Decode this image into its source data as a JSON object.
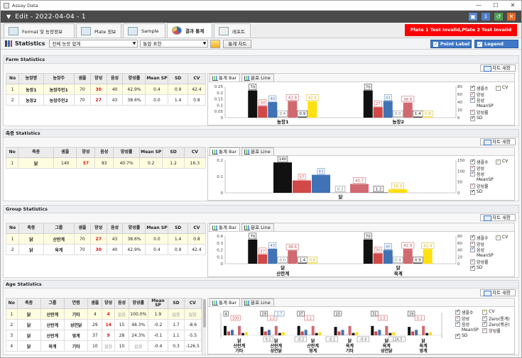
{
  "os": {
    "title": "Assay Data",
    "minimize": "—",
    "maximize": "☐",
    "close": "✕"
  },
  "app": {
    "title": "Edit  -  2022-04-04  -  1",
    "tools": [
      "▣",
      "⇩",
      "↺",
      "✕"
    ]
  },
  "tabs": [
    {
      "label": "Format 및 농장정보",
      "active": false
    },
    {
      "label": "Plate 정보",
      "active": false
    },
    {
      "label": "Sample",
      "active": false
    },
    {
      "label": "결과 통계",
      "active": true
    },
    {
      "label": "레포트",
      "active": false
    }
  ],
  "alert": "Plate 1 Test Invalid,Plate 2 Test Invalid",
  "statistics": {
    "title": "Statistics",
    "farm_select": "전체 농장 합계",
    "mode_select": "통합 표현",
    "chart_button": "통계 차트",
    "point_label": "Point Label",
    "legend": "Legend"
  },
  "common": {
    "refresh_chart": "차트 새창",
    "tab_bar": "통계 Bar",
    "tab_line": "분포 Line",
    "meansp_header": "Mean SP"
  },
  "farm": {
    "title": "Farm Statistics",
    "headers": [
      "No",
      "농장명",
      "농장주",
      "샘플",
      "양성",
      "음성",
      "양성률",
      "Mean SP",
      "SD",
      "CV"
    ],
    "rows": [
      [
        "1",
        "농장1",
        "농장주인1",
        "70",
        "30",
        "40",
        "42.9%",
        "0.4",
        "0.9",
        "42.4"
      ],
      [
        "2",
        "농장2",
        "농장주인2",
        "70",
        "27",
        "43",
        "38.6%",
        "0.0",
        "1.4",
        "0.8"
      ]
    ],
    "legend": [
      "샘플수",
      "양성",
      "음성",
      "MeanSP",
      "양성률",
      "SD",
      "CV"
    ],
    "chart": {
      "categories": [
        "농장1",
        "농장2"
      ],
      "bars": [
        {
          "label": "70",
          "value": 70
        },
        {
          "label": "30",
          "value": 30
        },
        {
          "label": "40",
          "value": 40
        },
        {
          "label": "0.4",
          "value": 0.4
        },
        {
          "label": "42.9",
          "value": 42.9
        },
        {
          "label": "0.9",
          "value": 0.9
        },
        {
          "label": "42.4",
          "value": 42.4
        },
        {
          "label": "70",
          "value": 70
        },
        {
          "label": "27",
          "value": 27
        },
        {
          "label": "43",
          "value": 43
        },
        {
          "label": "0.0",
          "value": 0.0
        },
        {
          "label": "38.6",
          "value": 38.6
        },
        {
          "label": "1.4",
          "value": 1.4
        },
        {
          "label": "0.8",
          "value": 0.8
        }
      ],
      "y_ticks": [
        "0",
        "0.05",
        "0.1",
        "0.15",
        "0.2",
        "0.25"
      ],
      "y2_ticks": [
        "0",
        "20",
        "40",
        "60",
        "80"
      ]
    }
  },
  "breed": {
    "title": "축종 Statistics",
    "headers": [
      "No",
      "축종",
      "샘플",
      "양성",
      "음성",
      "양성률",
      "Mean SP",
      "SD",
      "CV"
    ],
    "rows": [
      [
        "1",
        "닭",
        "140",
        "57",
        "83",
        "40.7%",
        "0.2",
        "1.2",
        "16.3"
      ]
    ],
    "legend": [
      "샘플수",
      "양성",
      "음성",
      "MeanSP",
      "양성률",
      "SD",
      "CV"
    ],
    "chart": {
      "categories": [
        "닭"
      ],
      "bars": [
        {
          "label": "140",
          "value": 140
        },
        {
          "label": "57",
          "value": 57
        },
        {
          "label": "83",
          "value": 83
        },
        {
          "label": "0.2",
          "value": 0.2
        },
        {
          "label": "40.7",
          "value": 40.7
        },
        {
          "label": "1.2",
          "value": 1.2
        },
        {
          "label": "16.3",
          "value": 16.3
        }
      ],
      "y_ticks": [
        "0",
        "0.1",
        "0.2"
      ],
      "y2_ticks": [
        "0",
        "50",
        "100",
        "150"
      ]
    }
  },
  "group": {
    "title": "Group Statistics",
    "headers": [
      "No",
      "축종",
      "그룹",
      "샘플",
      "양성",
      "음성",
      "양성률",
      "Mean SP",
      "SD",
      "CV"
    ],
    "rows": [
      [
        "1",
        "닭",
        "산란계",
        "70",
        "27",
        "43",
        "38.6%",
        "0.0",
        "1.4",
        "0.8"
      ],
      [
        "2",
        "닭",
        "육계",
        "70",
        "30",
        "40",
        "42.9%",
        "0.4",
        "0.9",
        "42.4"
      ]
    ],
    "legend": [
      "샘플수",
      "양성",
      "음성",
      "MeanSP",
      "양성률",
      "SD",
      "CV"
    ],
    "chart": {
      "categories": [
        "닭\n산란계",
        "닭\n육계"
      ],
      "bars": [
        {
          "label": "70",
          "value": 70
        },
        {
          "label": "27",
          "value": 27
        },
        {
          "label": "43",
          "value": 43
        },
        {
          "label": "0.0",
          "value": 0.0
        },
        {
          "label": "38.6",
          "value": 38.6
        },
        {
          "label": "1.4",
          "value": 1.4
        },
        {
          "label": "0.8",
          "value": 0.8
        },
        {
          "label": "70",
          "value": 70
        },
        {
          "label": "30",
          "value": 30
        },
        {
          "label": "40",
          "value": 40
        },
        {
          "label": "0.4",
          "value": 0.4
        },
        {
          "label": "42.9",
          "value": 42.9
        },
        {
          "label": "0.9",
          "value": 0.9
        },
        {
          "label": "42.4",
          "value": 42.4
        }
      ],
      "y_ticks": [
        "0",
        "0.1",
        "0.2",
        "0.3",
        "0.4"
      ],
      "y2_ticks": [
        "0",
        "20",
        "40",
        "60",
        "80"
      ]
    }
  },
  "age": {
    "title": "Age Statistics",
    "headers": [
      "No",
      "축종",
      "그룹",
      "연령",
      "샘플",
      "양성",
      "음성",
      "양성률",
      "Mean SP",
      "SD",
      "CV"
    ],
    "rows": [
      [
        "1",
        "닭",
        "산란계",
        "기타",
        "4",
        "4",
        "없음",
        "100.0%",
        "1.9",
        "없음",
        "없음"
      ],
      [
        "2",
        "닭",
        "산란계",
        "성연닭",
        "29",
        "14",
        "15",
        "48.3%",
        "-0.2",
        "1.7",
        "-8.6"
      ],
      [
        "3",
        "닭",
        "산란계",
        "영계",
        "37",
        "9",
        "28",
        "24.3%",
        "-0.1",
        "1.1",
        "-5.5"
      ],
      [
        "4",
        "닭",
        "육계",
        "기타",
        "10",
        "없음",
        "10",
        "없음",
        "-0.4",
        "0.3",
        "-126.5"
      ]
    ],
    "legend": [
      "샘플수",
      "CV",
      "양성",
      "Zero(통계)",
      "음성",
      "Zero(평균)",
      "MeanSP",
      "양성률",
      "SD"
    ],
    "chart": {
      "categories": [
        "닭\n산란계\n기타",
        "닭\n산란계\n성연닭",
        "닭\n산란계\n영계",
        "닭\n육계\n기타",
        "닭\n육계\n성연닭",
        "닭\n육계\n영계"
      ],
      "bar_labels": [
        "4",
        "100",
        "29",
        "1.5",
        "1.7",
        "37",
        "1.1",
        "10",
        "31",
        "1.5",
        "19",
        "0.1",
        "-0.2",
        "-0.1",
        "-0.4",
        "-126.5"
      ]
    }
  }
}
